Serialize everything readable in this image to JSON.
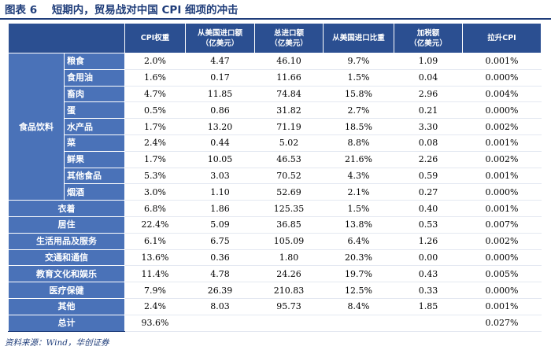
{
  "figure": {
    "label": "图表",
    "number": "6",
    "title": "短期内，贸易战对中国 CPI 细项的冲击"
  },
  "table": {
    "headers": [
      "CPI权重",
      "从美国进口额\n（亿美元）",
      "总进口额\n（亿美元）",
      "从美国进口比重",
      "加税额\n（亿美元）",
      "拉升CPI"
    ],
    "food_group_label": "食品饮料",
    "food_rows": [
      {
        "label": "粮食",
        "cells": [
          "2.0%",
          "4.47",
          "46.10",
          "9.7%",
          "1.09",
          "0.001%"
        ]
      },
      {
        "label": "食用油",
        "cells": [
          "1.6%",
          "0.17",
          "11.66",
          "1.5%",
          "0.04",
          "0.000%"
        ]
      },
      {
        "label": "畜肉",
        "cells": [
          "4.7%",
          "11.85",
          "74.84",
          "15.8%",
          "2.96",
          "0.004%"
        ]
      },
      {
        "label": "蛋",
        "cells": [
          "0.5%",
          "0.86",
          "31.82",
          "2.7%",
          "0.21",
          "0.000%"
        ]
      },
      {
        "label": "水产品",
        "cells": [
          "1.7%",
          "13.20",
          "71.19",
          "18.5%",
          "3.30",
          "0.002%"
        ]
      },
      {
        "label": "菜",
        "cells": [
          "2.4%",
          "0.44",
          "5.02",
          "8.8%",
          "0.08",
          "0.001%"
        ]
      },
      {
        "label": "鲜果",
        "cells": [
          "1.7%",
          "10.05",
          "46.53",
          "21.6%",
          "2.26",
          "0.002%"
        ]
      },
      {
        "label": "其他食品",
        "cells": [
          "5.3%",
          "3.03",
          "70.52",
          "4.3%",
          "0.59",
          "0.001%"
        ]
      },
      {
        "label": "烟酒",
        "cells": [
          "3.0%",
          "1.10",
          "52.69",
          "2.1%",
          "0.27",
          "0.000%"
        ]
      }
    ],
    "other_rows": [
      {
        "label": "衣着",
        "cells": [
          "6.8%",
          "1.86",
          "125.35",
          "1.5%",
          "0.40",
          "0.001%"
        ]
      },
      {
        "label": "居住",
        "cells": [
          "22.4%",
          "5.09",
          "36.85",
          "13.8%",
          "0.53",
          "0.007%"
        ]
      },
      {
        "label": "生活用品及服务",
        "cells": [
          "6.1%",
          "6.75",
          "105.09",
          "6.4%",
          "1.26",
          "0.002%"
        ]
      },
      {
        "label": "交通和通信",
        "cells": [
          "13.6%",
          "0.36",
          "1.80",
          "20.3%",
          "0.00",
          "0.000%"
        ]
      },
      {
        "label": "教育文化和娱乐",
        "cells": [
          "11.4%",
          "4.78",
          "24.26",
          "19.7%",
          "0.43",
          "0.005%"
        ]
      },
      {
        "label": "医疗保健",
        "cells": [
          "7.9%",
          "26.39",
          "210.83",
          "12.5%",
          "0.33",
          "0.000%"
        ]
      },
      {
        "label": "其他",
        "cells": [
          "2.4%",
          "8.03",
          "95.73",
          "8.4%",
          "1.85",
          "0.001%"
        ]
      }
    ],
    "total_row": {
      "label": "总计",
      "cells": [
        "93.6%",
        "",
        "",
        "",
        "",
        "0.027%"
      ]
    }
  },
  "source": "资料来源：Wind，华创证券",
  "colors": {
    "header_bg": "#2B4F91",
    "label_bg": "#4A72B8",
    "title_text": "#1F3D7A"
  }
}
